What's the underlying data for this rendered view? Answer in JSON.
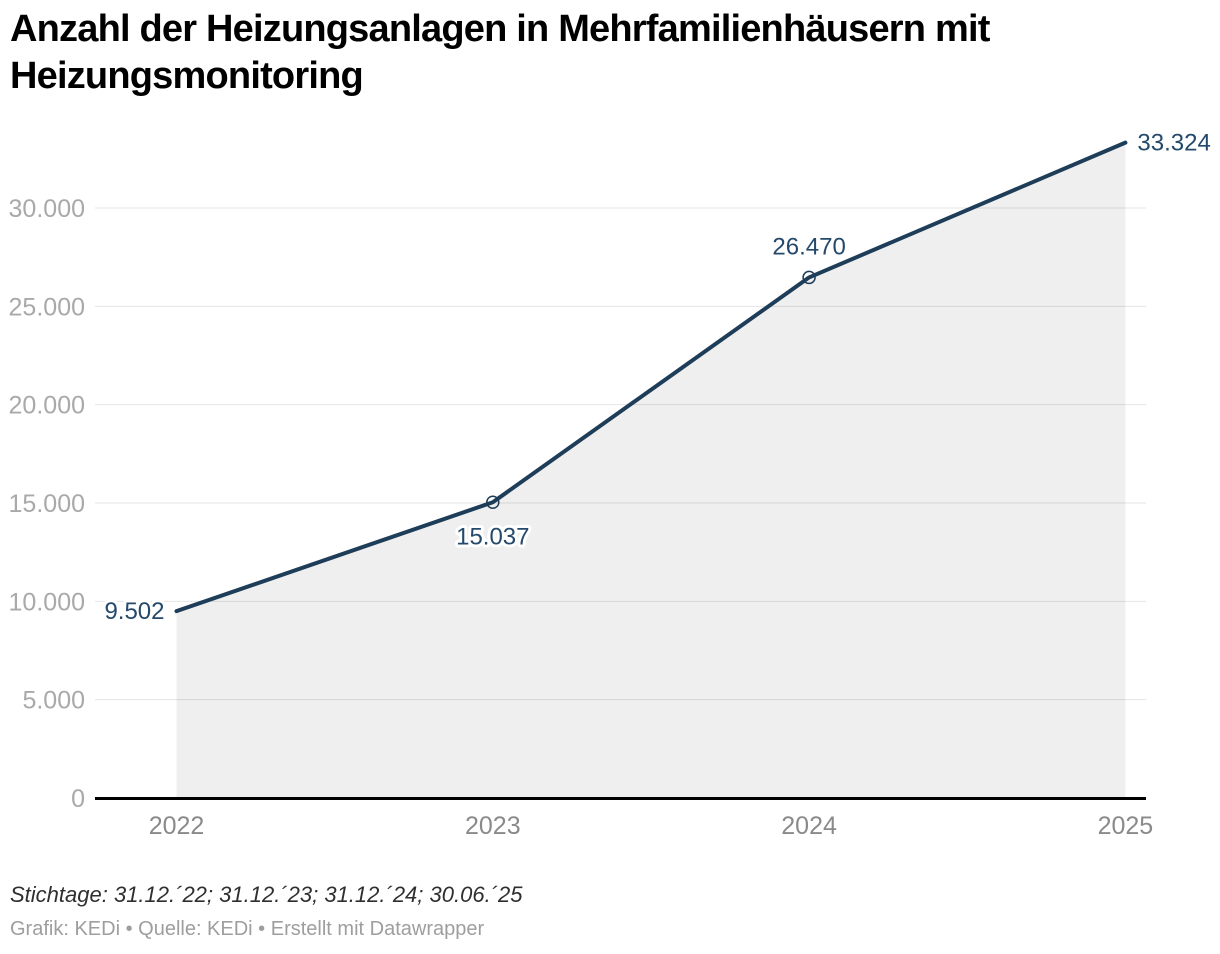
{
  "title_lines": [
    "Anzahl der Heizungsanlagen in Mehrfamilienhäusern mit",
    "Heizungsmonitoring"
  ],
  "footer": {
    "note": "Stichtage: 31.12.´22; 31.12.´23; 31.12.´24; 30.06.´25",
    "byline": "Grafik: KEDi • Quelle: KEDi • Erstellt mit Datawrapper"
  },
  "chart_data": {
    "type": "area",
    "title": "Anzahl der Heizungsanlagen in Mehrfamilienhäusern mit Heizungsmonitoring",
    "categories": [
      "2022",
      "2023",
      "2024",
      "2025"
    ],
    "values": [
      9502,
      15037,
      26470,
      33324
    ],
    "value_labels": [
      "9.502",
      "15.037",
      "26.470",
      "33.324"
    ],
    "xlabel": "",
    "ylabel": "",
    "ylim": [
      0,
      33500
    ],
    "yticks": [
      0,
      5000,
      10000,
      15000,
      20000,
      25000,
      30000
    ],
    "ytick_labels": [
      "0",
      "5.000",
      "10.000",
      "15.000",
      "20.000",
      "25.000",
      "30.000"
    ],
    "grid": true,
    "legend": "none",
    "colors": {
      "line": "#1e3d58",
      "label_text": "#24496b",
      "area": "rgba(0,0,0,0.063)",
      "grid": "#e4e4e4",
      "axis": "#000000",
      "ytick_text": "#a9a9a9",
      "xtick_text": "#8a8a8a"
    }
  }
}
